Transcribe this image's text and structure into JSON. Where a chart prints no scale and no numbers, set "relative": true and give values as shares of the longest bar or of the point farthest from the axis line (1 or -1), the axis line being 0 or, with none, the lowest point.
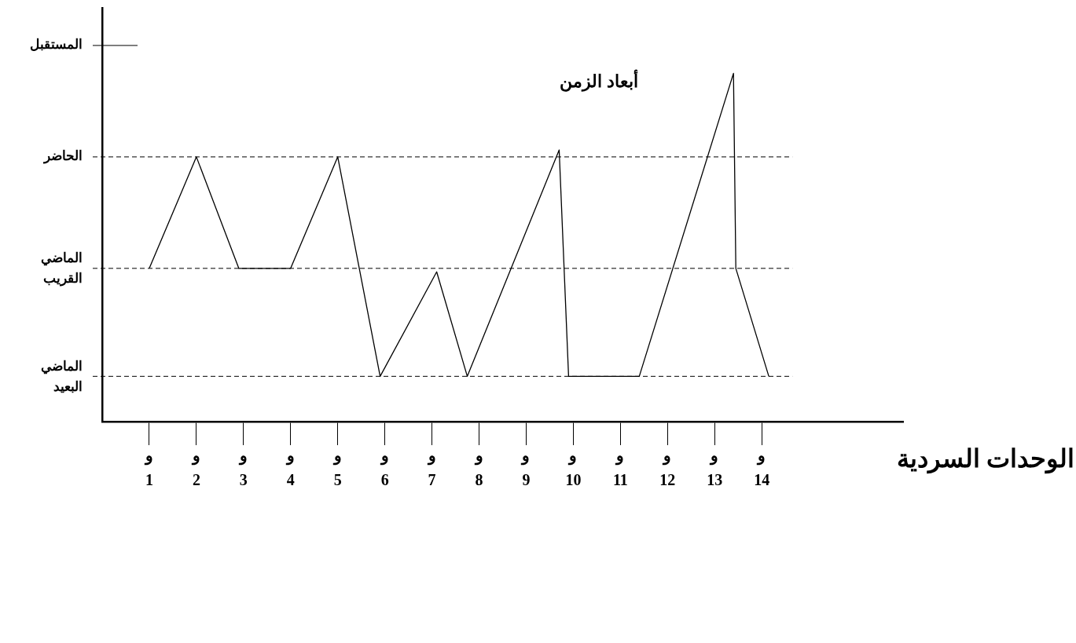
{
  "chart_data": {
    "type": "line",
    "title": "أبعاد الزمن",
    "xlabel": "الوحدات السردية",
    "relative": true,
    "x": [
      1.0,
      2.0,
      2.9,
      4.0,
      5.0,
      5.9,
      7.1,
      7.75,
      9.7,
      9.9,
      11.4,
      13.4,
      13.45,
      14.15
    ],
    "series": [
      {
        "color": "#000000",
        "values": [
          0.44,
          0.76,
          0.44,
          0.44,
          0.76,
          0.13,
          0.43,
          0.13,
          0.78,
          0.13,
          0.13,
          1,
          0.44,
          0.13
        ]
      }
    ],
    "xlim": [
      0,
      17
    ],
    "xticks": [
      1,
      2,
      3,
      4,
      5,
      6,
      7,
      8,
      9,
      10,
      11,
      12,
      13,
      14
    ],
    "annotations": [
      "و",
      "و",
      "و",
      "و",
      "و",
      "و",
      "و",
      "و",
      "و",
      "و",
      "و",
      "و",
      "و",
      "و"
    ],
    "ref_lines": [
      {
        "axis": "y",
        "value": 0.13,
        "label": "الماضي\nالبعيد",
        "line_style": "dashed"
      },
      {
        "axis": "y",
        "value": 0.44,
        "label": "الماضي\nالقريب",
        "line_style": "dashed"
      },
      {
        "axis": "y",
        "value": 0.76,
        "label": "الحاضر",
        "line_style": "dashed"
      },
      {
        "axis": "y",
        "value": 1.08,
        "label": "المستقبل",
        "line_style": "solid"
      }
    ],
    "grid": false,
    "legend": false,
    "marker": "none",
    "line_style": "solid"
  }
}
